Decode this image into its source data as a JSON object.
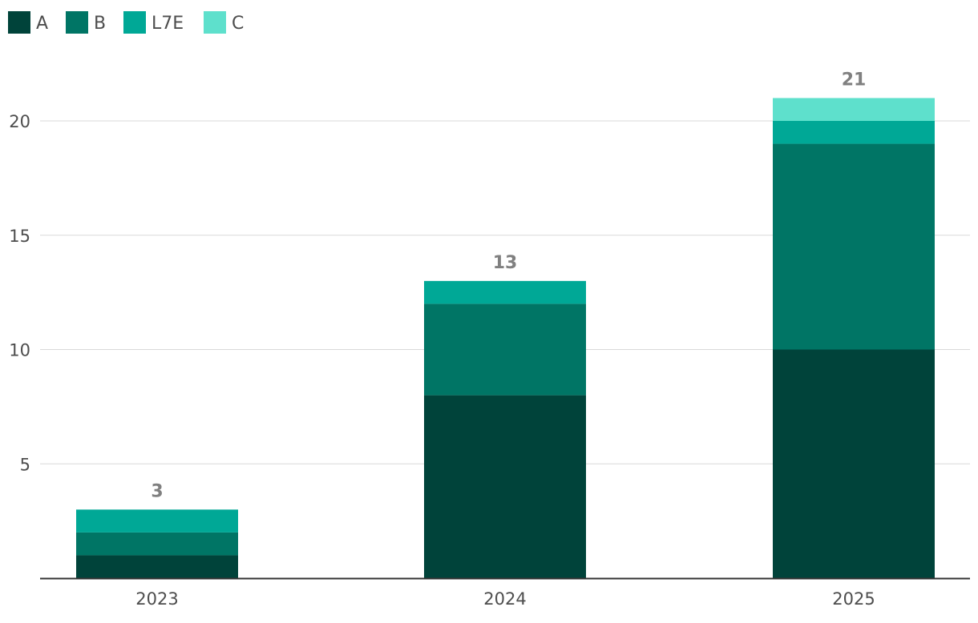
{
  "chart_data": {
    "type": "bar",
    "stacked": true,
    "title": "",
    "xlabel": "",
    "ylabel": "",
    "categories": [
      "2023",
      "2024",
      "2025"
    ],
    "series": [
      {
        "name": "A",
        "values": [
          1,
          8,
          10
        ],
        "color": "#00433a"
      },
      {
        "name": "B",
        "values": [
          1,
          4,
          9
        ],
        "color": "#007565"
      },
      {
        "name": "L7E",
        "values": [
          1,
          1,
          1
        ],
        "color": "#00a896"
      },
      {
        "name": "C",
        "values": [
          0,
          0,
          1
        ],
        "color": "#5ee0cc"
      }
    ],
    "totals": [
      3,
      13,
      21
    ],
    "ylim": [
      0,
      23
    ],
    "yticks": [
      5,
      10,
      15,
      20
    ],
    "grid": true,
    "legend_position": "top-left"
  },
  "colors": {
    "gridline": "#d9d9d9",
    "axis": "#333333",
    "tick_label": "#4d4d4d",
    "legend_label": "#4d4d4d",
    "total_label": "#808080"
  }
}
